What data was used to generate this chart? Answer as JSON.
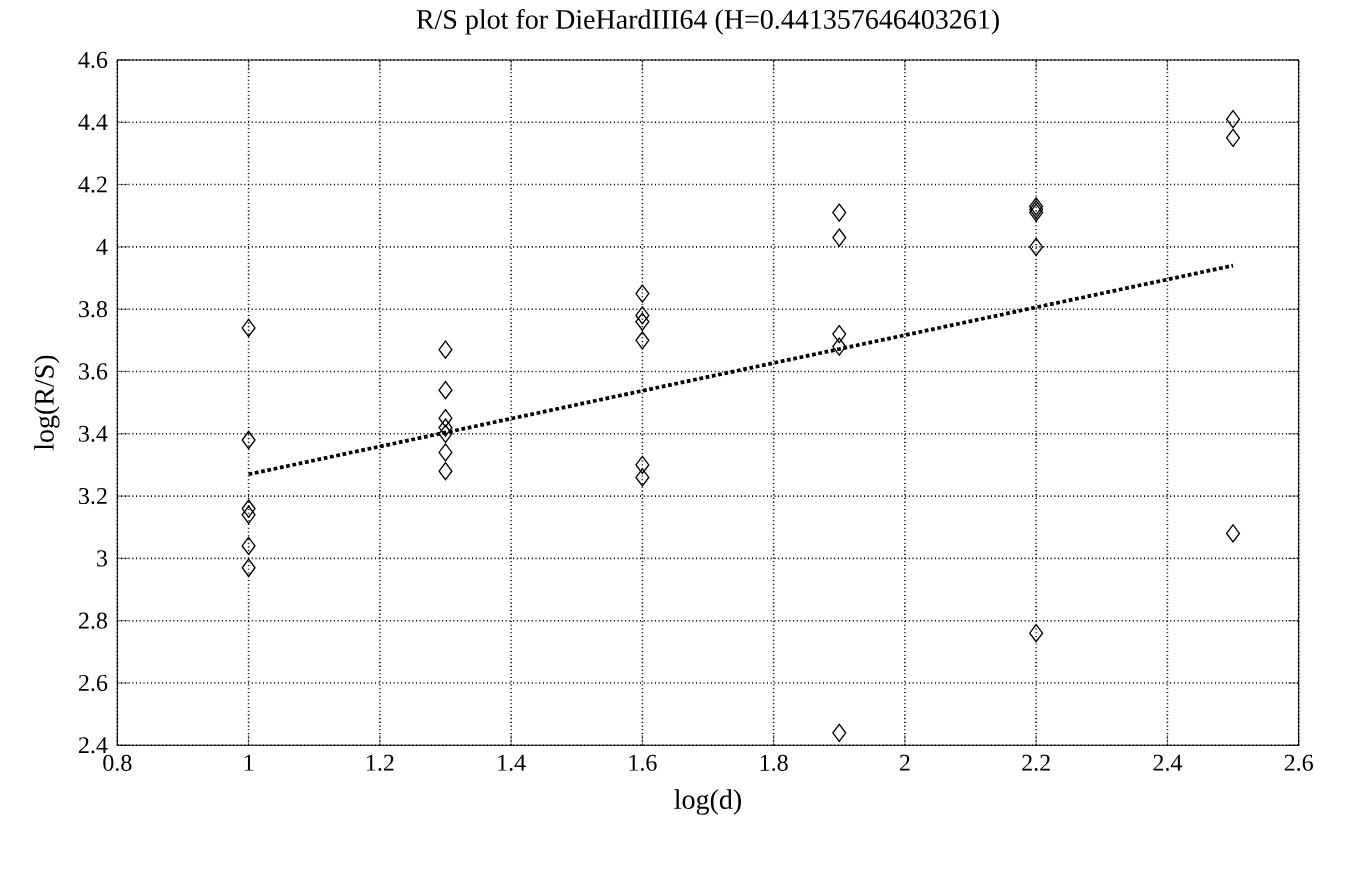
{
  "chart_data": {
    "type": "scatter",
    "title": "R/S plot for DieHardIII64 (H=0.441357646403261)",
    "xlabel": "log(d)",
    "ylabel": "log(R/S)",
    "xlim": [
      0.8,
      2.6
    ],
    "ylim": [
      2.4,
      4.6
    ],
    "xticks": [
      0.8,
      1,
      1.2,
      1.4,
      1.6,
      1.8,
      2,
      2.2,
      2.4,
      2.6
    ],
    "yticks": [
      2.4,
      2.6,
      2.8,
      3,
      3.2,
      3.4,
      3.6,
      3.8,
      4,
      4.2,
      4.4,
      4.6
    ],
    "grid": true,
    "series": [
      {
        "marker": "diamond",
        "color": "#000000",
        "x": [
          1,
          1,
          1,
          1,
          1,
          1,
          1.3,
          1.3,
          1.3,
          1.3,
          1.3,
          1.3,
          1.3,
          1.6,
          1.6,
          1.6,
          1.6,
          1.6,
          1.6,
          1.9,
          1.9,
          1.9,
          1.9,
          1.9,
          2.2,
          2.2,
          2.2,
          2.2,
          2.2,
          2.5,
          2.5,
          2.5
        ],
        "values": [
          3.74,
          3.38,
          3.16,
          3.14,
          3.04,
          2.97,
          3.67,
          3.54,
          3.45,
          3.42,
          3.4,
          3.34,
          3.28,
          3.85,
          3.78,
          3.76,
          3.7,
          3.3,
          3.26,
          4.11,
          4.03,
          3.72,
          3.68,
          2.44,
          4.13,
          4.12,
          4.11,
          4.0,
          2.76,
          4.41,
          4.35,
          3.08
        ]
      },
      {
        "type": "line",
        "marker": "none",
        "color": "#000000",
        "line_style": "dotted",
        "x": [
          1,
          2.5
        ],
        "values": [
          3.27,
          3.94
        ]
      }
    ]
  }
}
